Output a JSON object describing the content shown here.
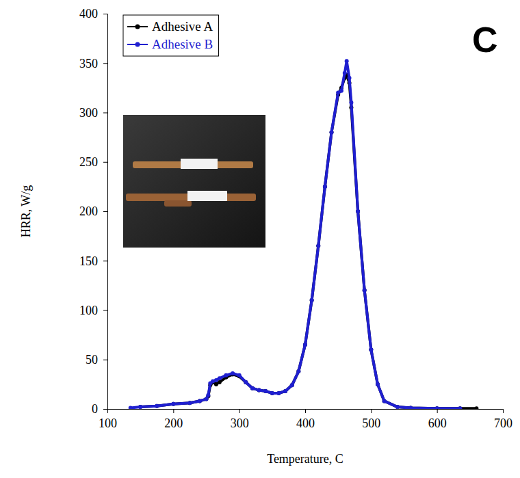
{
  "chart_data": {
    "type": "line",
    "panel_label": "C",
    "x_label": "Temperature, C",
    "y_label": "HRR, W/g",
    "x": [
      135,
      150,
      175,
      200,
      225,
      240,
      250,
      253,
      256,
      260,
      265,
      270,
      280,
      290,
      300,
      310,
      320,
      330,
      340,
      350,
      360,
      370,
      380,
      390,
      400,
      410,
      420,
      430,
      440,
      450,
      455,
      460,
      463,
      467,
      470,
      480,
      490,
      500,
      510,
      520,
      540,
      560,
      600,
      635,
      660
    ],
    "series": [
      {
        "name": "Adhesive A",
        "color": "#000000",
        "marker": "circle",
        "line_style": "solid",
        "values": [
          null,
          2,
          3,
          5,
          6,
          8,
          10,
          13,
          24,
          27,
          25,
          27,
          32,
          35,
          33,
          27,
          21,
          19,
          18,
          16,
          16,
          18,
          24,
          38,
          65,
          110,
          165,
          225,
          280,
          318,
          325,
          335,
          338,
          330,
          305,
          200,
          120,
          60,
          25,
          8,
          2,
          1,
          0.5,
          0.5,
          0.5
        ]
      },
      {
        "name": "Adhesive B",
        "color": "#1f1fd0",
        "marker": "circle",
        "line_style": "solid",
        "values": [
          1,
          2,
          3,
          5,
          6,
          8,
          10,
          14,
          26,
          28,
          29,
          31,
          34,
          36,
          34,
          27,
          21,
          19,
          18,
          16,
          16,
          18,
          24,
          38,
          65,
          110,
          165,
          225,
          280,
          320,
          322,
          340,
          352,
          335,
          310,
          200,
          120,
          60,
          25,
          8,
          2,
          1,
          0.5,
          0.5,
          null
        ]
      }
    ],
    "xlim": [
      100,
      700
    ],
    "xticks": [
      100,
      200,
      300,
      400,
      500,
      600,
      700
    ],
    "ylim": [
      0,
      400
    ],
    "yticks": [
      0,
      50,
      100,
      150,
      200,
      250,
      300,
      350,
      400
    ],
    "grid": false,
    "legend": "upper left"
  }
}
